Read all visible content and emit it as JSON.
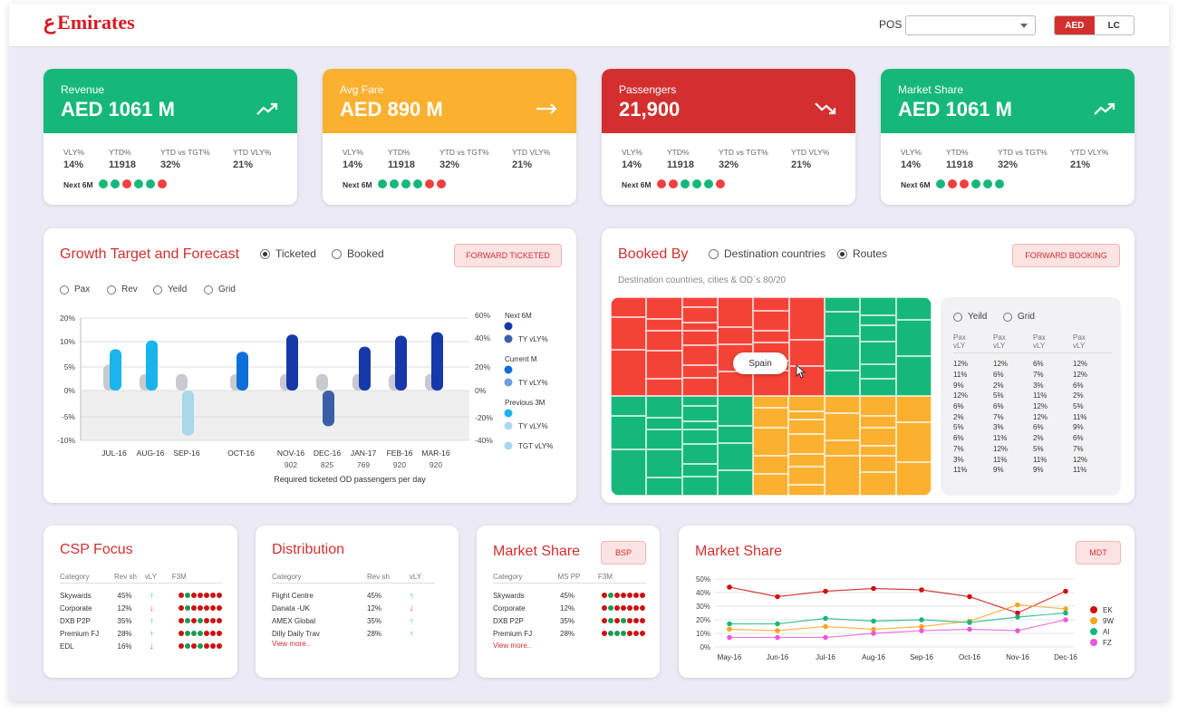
{
  "brand": {
    "name": "Emirates",
    "logo_mark": "ع"
  },
  "header": {
    "pos_label": "POS",
    "pos_value": "",
    "currency": [
      "AED",
      "LC"
    ],
    "currency_selected": "AED"
  },
  "kpis": [
    {
      "title": "Revenue",
      "value": "AED 1061 M",
      "color": "#15b87a",
      "trend": "up",
      "stats": [
        {
          "label": "VLY%",
          "value": "14%"
        },
        {
          "label": "YTD%",
          "value": "11918"
        },
        {
          "label": "YTD vs TGT%",
          "value": "32%"
        },
        {
          "label": "YTD VLY%",
          "value": "21%"
        }
      ],
      "next_label": "Next 6M",
      "next": [
        "g",
        "g",
        "r",
        "g",
        "g",
        "r"
      ]
    },
    {
      "title": "Avg Fare",
      "value": "AED 890 M",
      "color": "#fbb02f",
      "trend": "flat",
      "stats": [
        {
          "label": "VLY%",
          "value": "14%"
        },
        {
          "label": "YTD%",
          "value": "11918"
        },
        {
          "label": "YTD vs TGT%",
          "value": "32%"
        },
        {
          "label": "YTD VLY%",
          "value": "21%"
        }
      ],
      "next_label": "Next 6M",
      "next": [
        "g",
        "g",
        "g",
        "g",
        "r",
        "r"
      ]
    },
    {
      "title": "Passengers",
      "value": "21,900",
      "color": "#d32f2f",
      "trend": "down",
      "stats": [
        {
          "label": "VLY%",
          "value": "14%"
        },
        {
          "label": "YTD%",
          "value": "11918"
        },
        {
          "label": "YTD vs TGT%",
          "value": "32%"
        },
        {
          "label": "YTD VLY%",
          "value": "21%"
        }
      ],
      "next_label": "Next 6M",
      "next": [
        "r",
        "r",
        "g",
        "g",
        "g",
        "r"
      ]
    },
    {
      "title": "Market Share",
      "value": "AED 1061 M",
      "color": "#15b87a",
      "trend": "up",
      "stats": [
        {
          "label": "VLY%",
          "value": "14%"
        },
        {
          "label": "YTD%",
          "value": "11918"
        },
        {
          "label": "YTD vs TGT%",
          "value": "32%"
        },
        {
          "label": "YTD VLY%",
          "value": "21%"
        }
      ],
      "next_label": "Next 6M",
      "next": [
        "g",
        "r",
        "r",
        "g",
        "g",
        "g"
      ]
    }
  ],
  "growth": {
    "title": "Growth Target and Forecast",
    "modes": [
      "Ticketed",
      "Booked"
    ],
    "mode_selected": "Ticketed",
    "button": "FORWARD TICKETED",
    "metrics": [
      "Pax",
      "Rev",
      "Yeild",
      "Grid"
    ],
    "chart_data": {
      "type": "bar",
      "categories": [
        "JUL-16",
        "AUG-16",
        "SEP-16",
        "OCT-16",
        "NOV-16",
        "DEC-16",
        "JAN-17",
        "FEB-16",
        "MAR-16"
      ],
      "sub_labels": [
        "",
        "",
        "",
        "",
        "902",
        "825",
        "769",
        "920",
        "920"
      ],
      "xlabel": "Required ticketed OD passengers per day",
      "left_ticks": [
        "20%",
        "10%",
        "5%",
        "0%",
        "-5%",
        "-10%"
      ],
      "right_ticks": [
        "60%",
        "40%",
        "20%",
        "0%",
        "-20%",
        "-40%"
      ],
      "series": [
        {
          "name": "TGT vLY%",
          "values": [
            5.5,
            3.5,
            3.5,
            3.5,
            3.5,
            3.5,
            3.5,
            3.5,
            3.5
          ]
        },
        {
          "name": "Forecast",
          "values": [
            8.5,
            10.5,
            -9,
            8,
            13,
            -7,
            9,
            12.5,
            14
          ]
        }
      ],
      "bar_colors": [
        "#18b4ec",
        "#18b4ec",
        "#a8d8ea",
        "#0f6fd8",
        "#1738a8",
        "#3a5fa8",
        "#1738a8",
        "#1738a8",
        "#1738a8"
      ],
      "ylim": [
        -10,
        20
      ]
    },
    "legend": [
      {
        "group": "Next 6M",
        "items": [
          {
            "label": "",
            "color": "#1738a8"
          },
          {
            "label": "TY vLY%",
            "color": "#3a5fa8"
          }
        ]
      },
      {
        "group": "Current M",
        "items": [
          {
            "label": "",
            "color": "#0f6fd8"
          },
          {
            "label": "TY vLY%",
            "color": "#6c9ee0"
          }
        ]
      },
      {
        "group": "Previous 3M",
        "items": [
          {
            "label": "",
            "color": "#18b4ec"
          },
          {
            "label": "TY vLY%",
            "color": "#a8d8ea"
          }
        ]
      },
      {
        "group": "",
        "items": [
          {
            "label": "TGT vLY%",
            "color": "#a8d8ea"
          }
        ]
      }
    ]
  },
  "booked_by": {
    "title": "Booked By",
    "modes": [
      "Destination countries",
      "Routes"
    ],
    "mode_selected": "Routes",
    "button": "FORWARD BOOKING",
    "subtitle": "Destination countries, cities & OD`s 80/20",
    "tooltip": "Spain",
    "side_options": [
      "Yeild",
      "Grid"
    ],
    "columns": [
      "Pax\nvLY",
      "Pax\nvLY",
      "Pax\nvLY",
      "Pax\nvLY"
    ],
    "rows": [
      [
        "12%",
        "12%",
        "6%",
        "12%"
      ],
      [
        "11%",
        "6%",
        "7%",
        "12%"
      ],
      [
        "9%",
        "2%",
        "3%",
        "6%"
      ],
      [
        "12%",
        "5%",
        "11%",
        "2%"
      ],
      [
        "6%",
        "6%",
        "12%",
        "5%"
      ],
      [
        "2%",
        "7%",
        "12%",
        "11%"
      ],
      [
        "5%",
        "3%",
        "6%",
        "9%"
      ],
      [
        "6%",
        "11%",
        "2%",
        "6%"
      ],
      [
        "7%",
        "12%",
        "5%",
        "7%"
      ],
      [
        "3%",
        "11%",
        "11%",
        "12%"
      ],
      [
        "11%",
        "9%",
        "9%",
        "11%"
      ]
    ]
  },
  "csp": {
    "title": "CSP Focus",
    "headers": [
      "Category",
      "Rev sh",
      "vLY",
      "F3M"
    ],
    "rows": [
      {
        "name": "Skywards",
        "rev": "45%",
        "dir": "up",
        "f3m": [
          "r",
          "g",
          "r",
          "r",
          "r",
          "r",
          "r"
        ]
      },
      {
        "name": "Corporate",
        "rev": "12%",
        "dir": "down",
        "f3m": [
          "r",
          "g",
          "r",
          "r",
          "r",
          "r",
          "r"
        ]
      },
      {
        "name": "DXB P2P",
        "rev": "35%",
        "dir": "up",
        "f3m": [
          "r",
          "g",
          "r",
          "g",
          "r",
          "r",
          "r"
        ]
      },
      {
        "name": "Premium FJ",
        "rev": "28%",
        "dir": "up",
        "f3m": [
          "r",
          "g",
          "g",
          "g",
          "r",
          "r",
          "r"
        ]
      },
      {
        "name": "EDL",
        "rev": "16%",
        "dir": "down",
        "f3m": [
          "r",
          "g",
          "r",
          "g",
          "r",
          "r",
          "r"
        ]
      }
    ]
  },
  "distribution": {
    "title": "Distribution",
    "headers": [
      "Category",
      "Rev sh",
      "vLY"
    ],
    "rows": [
      {
        "name": "Flight Centre",
        "rev": "45%",
        "dir": "up"
      },
      {
        "name": "Danata -UK",
        "rev": "12%",
        "dir": "down"
      },
      {
        "name": "AMEX Global",
        "rev": "35%",
        "dir": "up"
      },
      {
        "name": "Dilly Daily Trav",
        "rev": "28%",
        "dir": "up"
      }
    ],
    "more": "View more.."
  },
  "market_bsp": {
    "title": "Market Share",
    "button": "BSP",
    "headers": [
      "Category",
      "MS PP",
      "F3M"
    ],
    "rows": [
      {
        "name": "Skywards",
        "ms": "45%",
        "f3m": [
          "r",
          "g",
          "r",
          "r",
          "r",
          "r",
          "r"
        ]
      },
      {
        "name": "Corporate",
        "ms": "12%",
        "f3m": [
          "r",
          "g",
          "r",
          "r",
          "r",
          "r",
          "r"
        ]
      },
      {
        "name": "DXB P2P",
        "ms": "35%",
        "f3m": [
          "r",
          "g",
          "r",
          "g",
          "r",
          "r",
          "r"
        ]
      },
      {
        "name": "Premium FJ",
        "ms": "28%",
        "f3m": [
          "r",
          "g",
          "g",
          "g",
          "r",
          "r",
          "r"
        ]
      }
    ],
    "more": "View more.."
  },
  "market_mdt": {
    "title": "Market Share",
    "button": "MDT",
    "chart_data": {
      "type": "line",
      "x": [
        "May-16",
        "Jun-16",
        "Jul-16",
        "Aug-16",
        "Sep-16",
        "Oct-16",
        "Nov-16",
        "Dec-16"
      ],
      "yticks": [
        "50%",
        "40%",
        "30%",
        "20%",
        "10%",
        "0%"
      ],
      "ylim": [
        0,
        50
      ],
      "series": [
        {
          "name": "EK",
          "color": "#cc1111",
          "values": [
            44,
            37,
            41,
            43,
            42,
            37,
            25,
            41
          ]
        },
        {
          "name": "9W",
          "color": "#f5a623",
          "values": [
            13,
            12,
            15,
            13,
            15,
            19,
            31,
            28
          ]
        },
        {
          "name": "AI",
          "color": "#15b87a",
          "values": [
            17,
            17,
            21,
            19,
            20,
            18,
            22,
            25
          ]
        },
        {
          "name": "FZ",
          "color": "#e85ad6",
          "values": [
            7,
            7,
            7,
            10,
            12,
            13,
            12,
            20
          ]
        }
      ]
    }
  }
}
